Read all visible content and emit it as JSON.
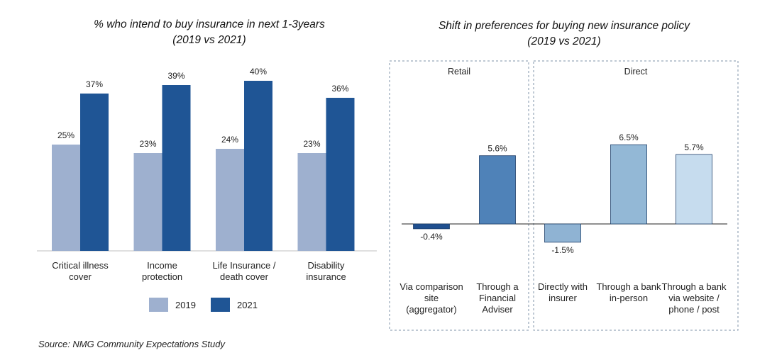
{
  "source": "Source: NMG Community Expectations Study",
  "chart_data": [
    {
      "type": "bar",
      "title_line1": "% who intend to buy insurance in next 1-3years",
      "title_line2": "(2019 vs 2021)",
      "categories": [
        [
          "Critical illness",
          "cover"
        ],
        [
          "Income",
          "protection"
        ],
        [
          "Life Insurance /",
          "death cover"
        ],
        [
          "Disability",
          "insurance"
        ]
      ],
      "series": [
        {
          "name": "2019",
          "values": [
            25,
            23,
            24,
            23
          ],
          "labels": [
            "25%",
            "23%",
            "24%",
            "23%"
          ],
          "color": "#9eb0cf"
        },
        {
          "name": "2021",
          "values": [
            37,
            39,
            40,
            36
          ],
          "labels": [
            "37%",
            "39%",
            "40%",
            "36%"
          ],
          "color": "#1f5595"
        }
      ],
      "ylim": [
        0,
        45
      ],
      "legend": "bottom"
    },
    {
      "type": "bar",
      "title_line1": "Shift in preferences for buying new insurance policy",
      "title_line2": "(2019 vs 2021)",
      "groups": [
        {
          "name": "Retail",
          "color": "#3a67a8",
          "count": 2
        },
        {
          "name": "Direct",
          "color": "#8c8c8c",
          "count": 3
        }
      ],
      "categories": [
        [
          "Via comparison",
          "site",
          "(aggregator)"
        ],
        [
          "Through a",
          "Financial",
          "Adviser"
        ],
        [
          "Directly with",
          "insurer"
        ],
        [
          "Through a bank",
          "in-person"
        ],
        [
          "Through a bank",
          "via website /",
          "phone / post"
        ]
      ],
      "values": [
        -0.4,
        5.6,
        -1.5,
        6.5,
        5.7
      ],
      "labels": [
        "-0.4%",
        "5.6%",
        "-1.5%",
        "6.5%",
        "5.7%"
      ],
      "colors": [
        "#1f4f8f",
        "#4f82b8",
        "#8fb3d3",
        "#93b8d6",
        "#c6dcee"
      ],
      "ylim": [
        -2.5,
        7.5
      ]
    }
  ]
}
